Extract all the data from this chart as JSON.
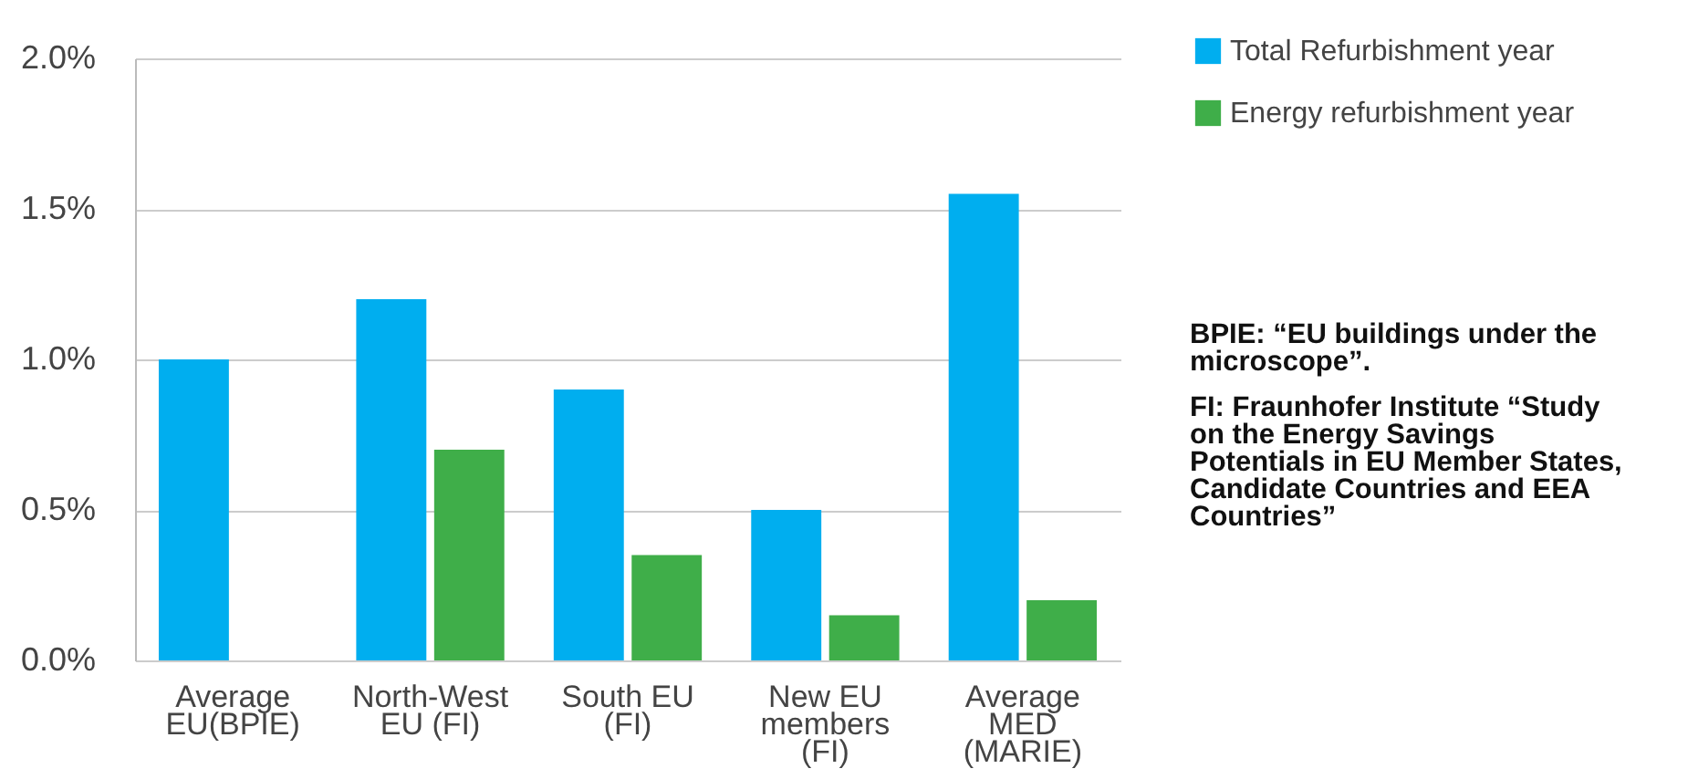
{
  "chart_data": {
    "type": "bar",
    "categories": [
      "Average EU(BPIE)",
      "North-West EU (FI)",
      "South EU (FI)",
      "New EU members (FI)",
      "Average MED (MARIE)"
    ],
    "series": [
      {
        "name": "Total Refurbishment year",
        "color": "#00aeef",
        "values": [
          1.0,
          1.2,
          0.9,
          0.5,
          1.55
        ]
      },
      {
        "name": "Energy refurbishment year",
        "color": "#3fae49",
        "values": [
          null,
          0.7,
          0.35,
          0.15,
          0.2
        ]
      }
    ],
    "ylim": [
      0,
      2
    ],
    "yticks": [
      {
        "value": 0,
        "label": "0.0%"
      },
      {
        "value": 0.5,
        "label": "0.5%"
      },
      {
        "value": 1,
        "label": "1.0%"
      },
      {
        "value": 1.5,
        "label": "1.5%"
      },
      {
        "value": 2,
        "label": "2.0%"
      }
    ],
    "grid": "y",
    "legend": "top right",
    "annotations": [
      "BPIE: “EU buildings under the microscope”.",
      "FI: Fraunhofer Institute “Study on the Energy Savings Potentials in EU Member States, Candidate Countries and EEA Countries”"
    ]
  }
}
